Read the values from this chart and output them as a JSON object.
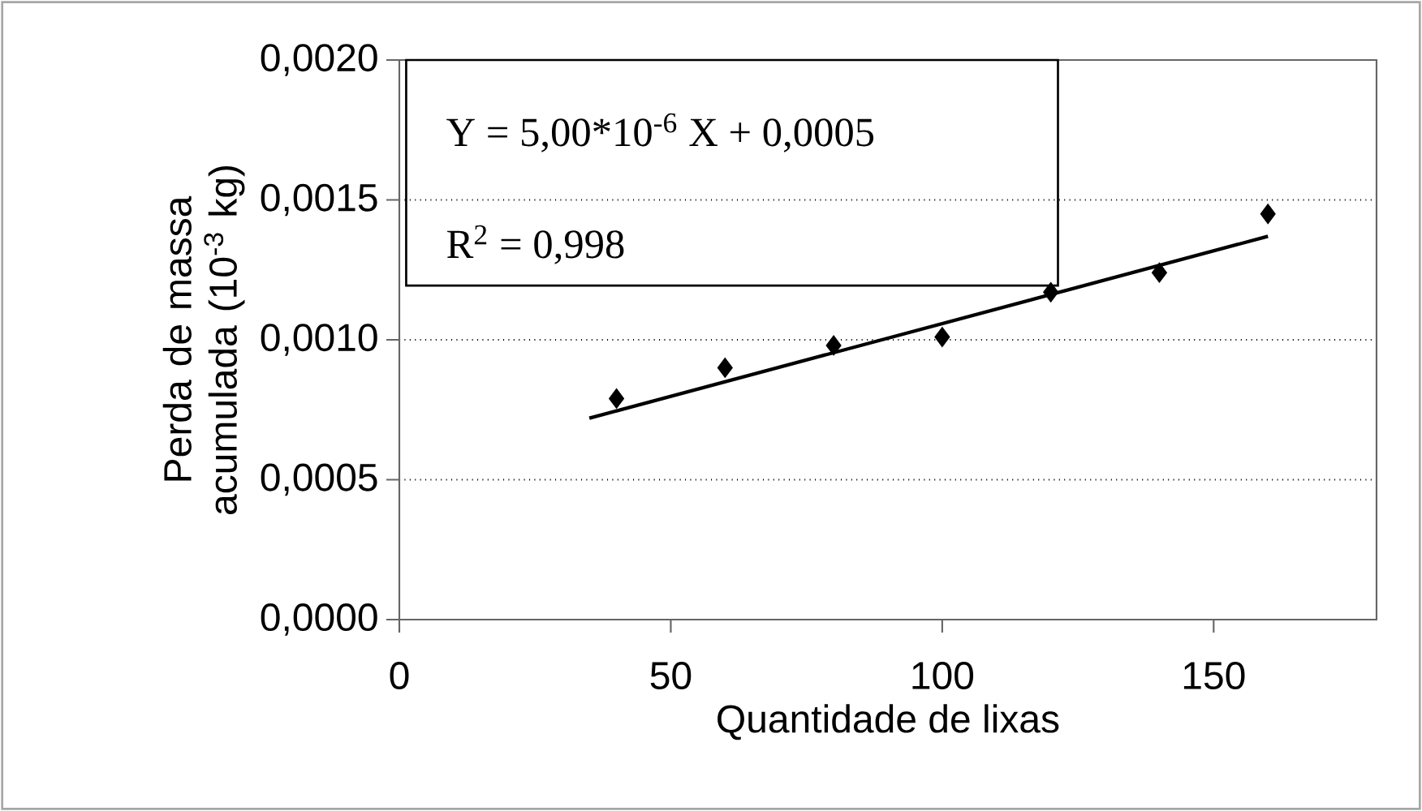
{
  "chart_data": {
    "type": "scatter",
    "xlabel": "Quantidade de lixas",
    "ylabel": "Perda de massa acumulada (10$^{-3}$ kg)",
    "annotations": [
      "Y = 5,00*10$^{-6}$ X + 0,0005",
      "R$^{2}$ = 0,998"
    ],
    "x": [
      40,
      60,
      80,
      100,
      120,
      140,
      160
    ],
    "series": [
      {
        "color": "#000000",
        "marker": "diamond",
        "values": [
          0.00079,
          0.0009,
          0.00098,
          0.00101,
          0.00117,
          0.00124,
          0.00145
        ]
      },
      {
        "type": "line",
        "color": "#000000",
        "line_style": "solid",
        "marker": "none",
        "x": [
          35,
          160
        ],
        "values": [
          0.00072,
          0.00137
        ]
      }
    ],
    "xlim": [
      0,
      180
    ],
    "ylim": [
      0,
      0.002
    ],
    "xticks": [
      0,
      50,
      100,
      150
    ],
    "yticks": [
      {
        "value": 0,
        "label": "0,0000"
      },
      {
        "value": 0.0005,
        "label": "0,0005"
      },
      {
        "value": 0.001,
        "label": "0,0010"
      },
      {
        "value": 0.0015,
        "label": "0,0015"
      },
      {
        "value": 0.002,
        "label": "0,0020"
      }
    ],
    "grid": "y"
  }
}
